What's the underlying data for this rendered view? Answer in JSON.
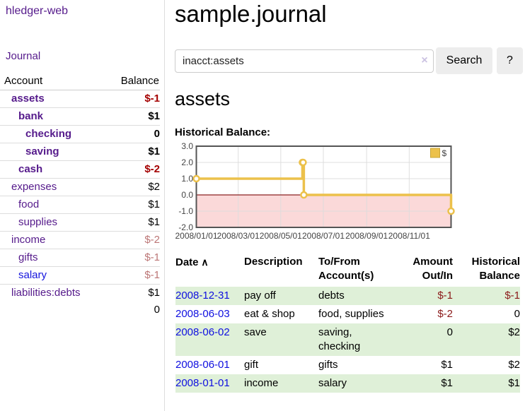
{
  "app": {
    "title": "hledger-web",
    "nav_journal": "Journal"
  },
  "sidebar": {
    "columns": {
      "account": "Account",
      "balance": "Balance"
    },
    "accounts": [
      {
        "name": "assets",
        "depth": 1,
        "balance": "$-1",
        "bold": true,
        "negative": "strong"
      },
      {
        "name": "bank",
        "depth": 2,
        "balance": "$1",
        "bold": true
      },
      {
        "name": "checking",
        "depth": 3,
        "balance": "0",
        "bold": true
      },
      {
        "name": "saving",
        "depth": 3,
        "balance": "$1",
        "bold": true
      },
      {
        "name": "cash",
        "depth": 2,
        "balance": "$-2",
        "bold": true,
        "negative": "strong"
      },
      {
        "name": "expenses",
        "depth": 1,
        "balance": "$2"
      },
      {
        "name": "food",
        "depth": 2,
        "balance": "$1"
      },
      {
        "name": "supplies",
        "depth": 2,
        "balance": "$1"
      },
      {
        "name": "income",
        "depth": 1,
        "balance": "$-2",
        "negative": "muted"
      },
      {
        "name": "gifts",
        "depth": 2,
        "balance": "$-1",
        "negative": "muted"
      },
      {
        "name": "salary",
        "depth": 2,
        "balance": "$-1",
        "negative": "muted",
        "link_color": "blue"
      },
      {
        "name": "liabilities:debts",
        "depth": 1,
        "balance": "$1"
      }
    ],
    "total": "0"
  },
  "header": {
    "title": "sample.journal"
  },
  "search": {
    "value": "inacct:assets",
    "clear_icon": "×",
    "button": "Search",
    "help_button": "?"
  },
  "account_page": {
    "title": "assets",
    "chart_label": "Historical Balance:"
  },
  "chart_data": {
    "type": "line",
    "title": "Historical Balance:",
    "series": [
      {
        "name": "$",
        "color": "#ecc14b",
        "steps": true,
        "points": [
          {
            "date": "2008-01-01",
            "day": 0,
            "value": 1
          },
          {
            "date": "2008-06-01",
            "day": 152,
            "value": 2
          },
          {
            "date": "2008-06-02",
            "day": 153,
            "value": 2
          },
          {
            "date": "2008-06-03",
            "day": 154,
            "value": 0
          },
          {
            "date": "2008-12-31",
            "day": 365,
            "value": -1
          }
        ]
      }
    ],
    "x_ticks": [
      {
        "label": "2008/01/01",
        "day": 0
      },
      {
        "label": "2008/03/01",
        "day": 60
      },
      {
        "label": "2008/05/01",
        "day": 121
      },
      {
        "label": "2008/07/01",
        "day": 182
      },
      {
        "label": "2008/09/01",
        "day": 244
      },
      {
        "label": "2008/11/01",
        "day": 305
      }
    ],
    "y_ticks": [
      "3.0",
      "2.0",
      "1.0",
      "0.0",
      "-1.0",
      "-2.0"
    ],
    "ylim": [
      -2,
      3
    ],
    "x_range_days": [
      0,
      365
    ],
    "grid": true,
    "legend_position": "top-right",
    "negative_region_color": "#fbd9d9",
    "zero_line_color": "#8b2323",
    "border_color": "#545454",
    "gridline_color": "#dcdcdc"
  },
  "register": {
    "sort_icon": "∧",
    "columns": [
      {
        "label": "Date",
        "align": "left",
        "sortable": true
      },
      {
        "label": "Description",
        "align": "left"
      },
      {
        "label": "To/From Account(s)",
        "align": "left"
      },
      {
        "label": "Amount Out/In",
        "align": "right",
        "cls": "amt"
      },
      {
        "label": "Historical Balance",
        "align": "right"
      }
    ],
    "rows": [
      {
        "date": "2008-12-31",
        "description": "pay off",
        "accounts": "debts",
        "amount": "$-1",
        "balance": "$-1",
        "amount_negative": true,
        "balance_negative": true,
        "highlight": true
      },
      {
        "date": "2008-06-03",
        "description": "eat & shop",
        "accounts": "food, supplies",
        "amount": "$-2",
        "balance": "0",
        "amount_negative": true,
        "highlight": false
      },
      {
        "date": "2008-06-02",
        "description": "save",
        "accounts": "saving, checking",
        "amount": "0",
        "balance": "$2",
        "highlight": true
      },
      {
        "date": "2008-06-01",
        "description": "gift",
        "accounts": "gifts",
        "amount": "$1",
        "balance": "$2",
        "highlight": false
      },
      {
        "date": "2008-01-01",
        "description": "income",
        "accounts": "salary",
        "amount": "$1",
        "balance": "$1",
        "highlight": true
      }
    ]
  }
}
